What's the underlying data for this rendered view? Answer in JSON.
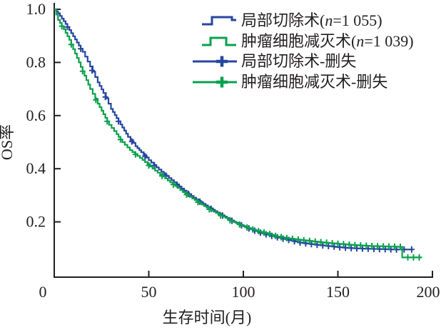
{
  "chart_data": {
    "type": "line",
    "subtype": "kaplan_meier_step",
    "title": "",
    "xlabel": "生存时间(月)",
    "ylabel": "OS率",
    "xlim": [
      0,
      200
    ],
    "ylim": [
      0,
      1.0
    ],
    "x_ticks": [
      0,
      50,
      100,
      150,
      200
    ],
    "x_tick_labels": [
      "0",
      "50",
      "100",
      "150",
      "200"
    ],
    "y_ticks": [
      0.2,
      0.4,
      0.6,
      0.8,
      1.0
    ],
    "y_tick_labels": [
      "0.2",
      "0.4",
      "0.6",
      "0.8",
      "1.0"
    ],
    "grid": false,
    "legend_position": "top-right",
    "axis_color": "#231f20",
    "series": [
      {
        "name": "局部切除术(n=1 055)",
        "censor_name": "局部切除术-删失",
        "color": "#2746a0",
        "style": "step",
        "x": [
          0,
          2,
          4,
          6,
          9,
          12,
          15,
          19,
          23,
          26,
          30,
          33,
          36,
          39,
          43,
          46,
          50,
          54,
          58,
          62,
          66,
          70,
          75,
          80,
          85,
          90,
          95,
          100,
          105,
          110,
          115,
          120,
          125,
          130,
          135,
          140,
          145,
          150,
          155,
          160,
          165,
          170,
          175,
          181,
          189
        ],
        "y": [
          1.0,
          0.985,
          0.965,
          0.945,
          0.91,
          0.875,
          0.84,
          0.785,
          0.725,
          0.685,
          0.625,
          0.59,
          0.555,
          0.52,
          0.485,
          0.462,
          0.432,
          0.405,
          0.38,
          0.357,
          0.333,
          0.31,
          0.285,
          0.262,
          0.24,
          0.22,
          0.2,
          0.184,
          0.169,
          0.157,
          0.147,
          0.138,
          0.13,
          0.122,
          0.117,
          0.113,
          0.109,
          0.105,
          0.102,
          0.1,
          0.099,
          0.098,
          0.097,
          0.096,
          0.096
        ],
        "censor_x": [
          7,
          14,
          20,
          27,
          34,
          41,
          48,
          53,
          59,
          65,
          71,
          77,
          83,
          89,
          94,
          99,
          103,
          106,
          109,
          112,
          115,
          118,
          121,
          124,
          127,
          130,
          133,
          136,
          139,
          142,
          145,
          148,
          151,
          154,
          157,
          160,
          163,
          166,
          169,
          172,
          175,
          178,
          181,
          185,
          189
        ]
      },
      {
        "name": "肿瘤细胞减灭术(n=1 039)",
        "censor_name": "肿瘤细胞减灭术-删失",
        "color": "#0aa14e",
        "style": "step",
        "x": [
          0,
          2,
          5,
          8,
          10,
          13,
          16,
          19,
          23,
          26,
          29,
          33,
          36,
          40,
          44,
          48,
          52,
          56,
          60,
          64,
          68,
          73,
          78,
          83,
          88,
          93,
          98,
          103,
          108,
          113,
          118,
          123,
          128,
          133,
          138,
          143,
          148,
          153,
          158,
          163,
          168,
          173,
          178,
          183,
          184,
          194
        ],
        "y": [
          1.0,
          0.96,
          0.925,
          0.885,
          0.85,
          0.8,
          0.75,
          0.7,
          0.645,
          0.605,
          0.565,
          0.53,
          0.5,
          0.47,
          0.448,
          0.425,
          0.4,
          0.378,
          0.356,
          0.335,
          0.312,
          0.288,
          0.265,
          0.243,
          0.224,
          0.206,
          0.19,
          0.176,
          0.165,
          0.156,
          0.145,
          0.139,
          0.134,
          0.13,
          0.126,
          0.122,
          0.119,
          0.116,
          0.113,
          0.111,
          0.109,
          0.108,
          0.107,
          0.106,
          0.066,
          0.066
        ],
        "censor_x": [
          4,
          9,
          15,
          22,
          28,
          35,
          43,
          50,
          57,
          63,
          70,
          76,
          82,
          88,
          93,
          98,
          102,
          105,
          108,
          111,
          114,
          117,
          120,
          123,
          126,
          129,
          132,
          135,
          138,
          141,
          144,
          147,
          150,
          153,
          156,
          159,
          162,
          165,
          168,
          171,
          174,
          177,
          180,
          183,
          187,
          190,
          193
        ]
      }
    ]
  },
  "legend": {
    "items": [
      {
        "pre": "局部切除术(",
        "var": "n",
        "post": "=1 055)",
        "key": "step",
        "color": "#2746a0"
      },
      {
        "pre": "肿瘤细胞减灭术(",
        "var": "n",
        "post": "=1 039)",
        "key": "step",
        "color": "#0aa14e"
      },
      {
        "pre": "局部切除术-删失",
        "var": "",
        "post": "",
        "key": "censor",
        "color": "#2746a0"
      },
      {
        "pre": "肿瘤细胞减灭术-删失",
        "var": "",
        "post": "",
        "key": "censor",
        "color": "#0aa14e"
      }
    ]
  }
}
